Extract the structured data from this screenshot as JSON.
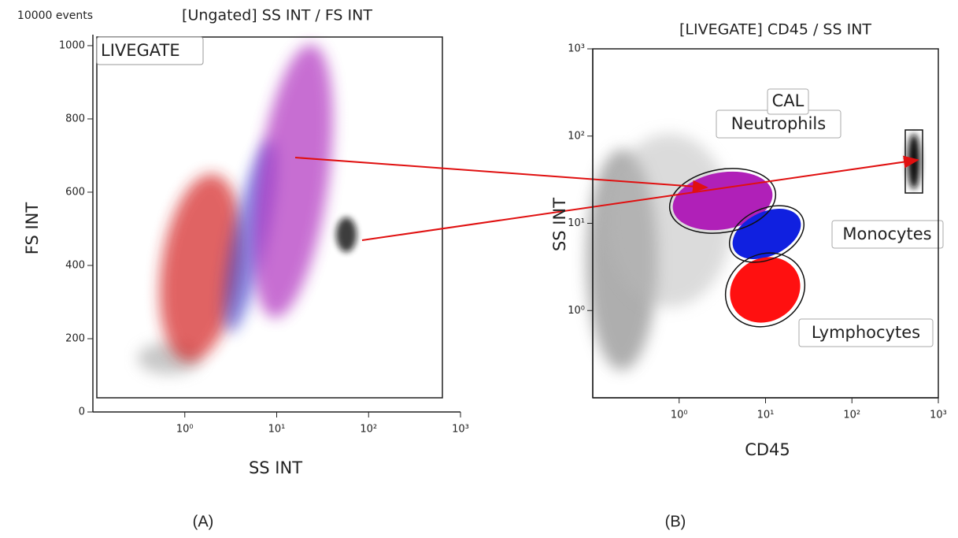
{
  "figure_labels": [
    "(A)",
    "(B)"
  ],
  "chart_data": [
    {
      "type": "scatter",
      "title": "[Ungated] SS INT / FS INT",
      "subtitle": "10000 events",
      "x_label": "SS INT",
      "y_label": "FS INT",
      "xscale": "log",
      "yscale": "linear",
      "xlim": [
        0.1,
        1000
      ],
      "ylim": [
        0,
        1030
      ],
      "xticks": [
        {
          "value": 1,
          "label": "10⁰"
        },
        {
          "value": 10,
          "label": "10¹"
        },
        {
          "value": 100,
          "label": "10²"
        },
        {
          "value": 1000,
          "label": "10³"
        }
      ],
      "yticks": [
        0,
        200,
        400,
        600,
        800,
        1000
      ],
      "annotations": [
        "LIVEGATE"
      ]
    },
    {
      "type": "scatter",
      "title": "[LIVEGATE] CD45 / SS INT",
      "x_label": "CD45",
      "y_label": "SS INT",
      "xscale": "log",
      "yscale": "log",
      "xlim": [
        0.1,
        1000
      ],
      "ylim": [
        0.1,
        1000
      ],
      "xticks": [
        {
          "value": 1,
          "label": "10⁰"
        },
        {
          "value": 10,
          "label": "10¹"
        },
        {
          "value": 100,
          "label": "10²"
        },
        {
          "value": 1000,
          "label": "10³"
        }
      ],
      "yticks": [
        {
          "value": 1,
          "label": "10⁰"
        },
        {
          "value": 10,
          "label": "10¹"
        },
        {
          "value": 100,
          "label": "10²"
        },
        {
          "value": 1000,
          "label": "10³"
        }
      ],
      "annotations": [
        "Neutrophils",
        "Monocytes",
        "Lymphocytes",
        "CAL"
      ]
    }
  ]
}
